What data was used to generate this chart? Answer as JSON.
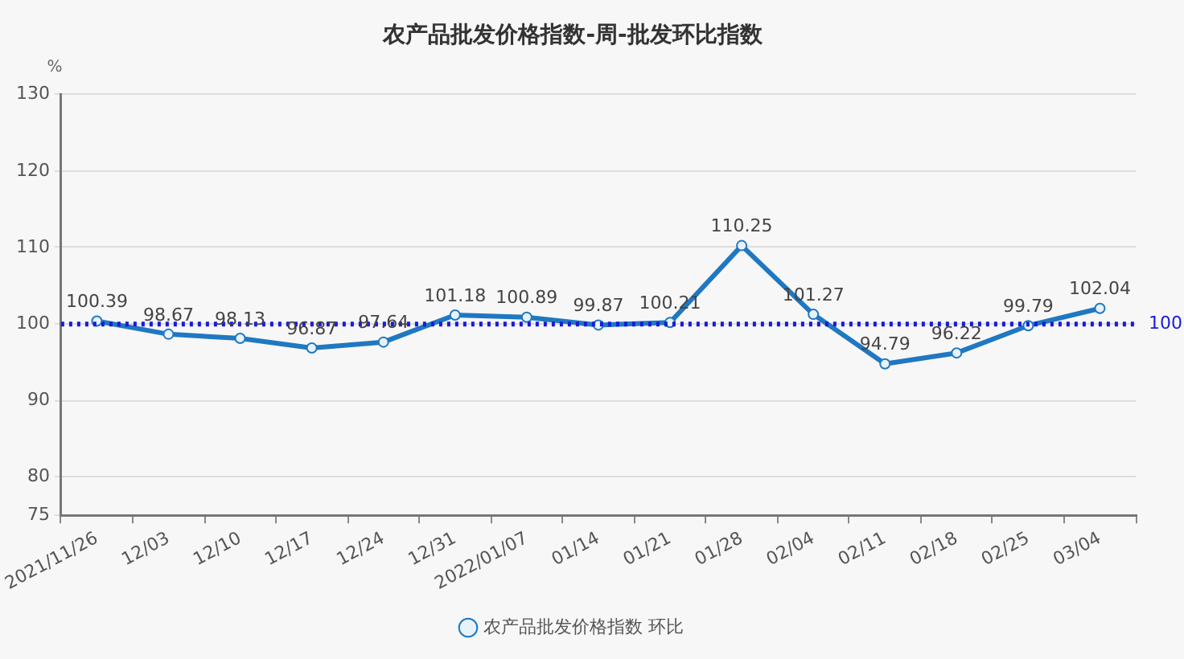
{
  "chart_data": {
    "type": "line",
    "title": "农产品批发价格指数-周-批发环比指数",
    "ylabel": "%",
    "categories": [
      "2021/11/26",
      "12/03",
      "12/10",
      "12/17",
      "12/24",
      "12/31",
      "2022/01/07",
      "01/14",
      "01/21",
      "01/28",
      "02/04",
      "02/11",
      "02/18",
      "02/25",
      "03/04"
    ],
    "series": [
      {
        "name": "农产品批发价格指数 环比",
        "color": "#1f78c1",
        "values": [
          100.39,
          98.67,
          98.13,
          96.87,
          97.64,
          101.18,
          100.89,
          99.87,
          100.21,
          110.25,
          101.27,
          94.79,
          96.22,
          99.79,
          102.04
        ]
      }
    ],
    "ylim": [
      75,
      130
    ],
    "yticks": [
      75,
      80,
      90,
      100,
      110,
      120,
      130
    ],
    "grid": "y",
    "legend": "bottom",
    "marker": "circle",
    "line_style": "solid",
    "data_labels": true,
    "ref_lines": [
      {
        "axis": "y",
        "value": 100,
        "label": "100",
        "color": "#1a1adb",
        "line_style": "dotted"
      }
    ]
  }
}
